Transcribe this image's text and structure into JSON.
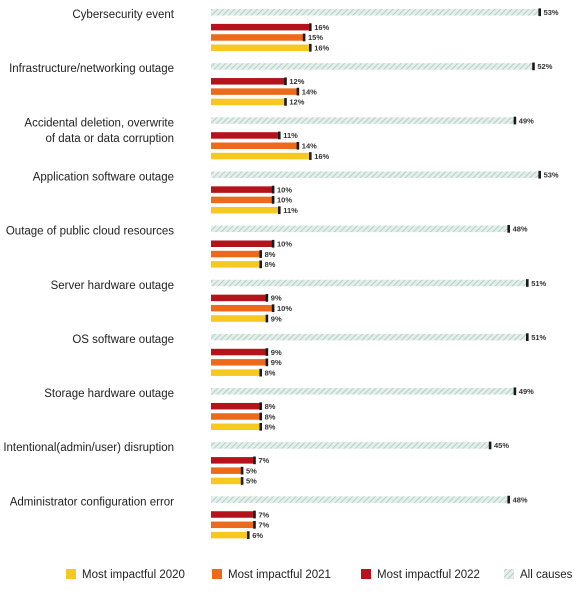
{
  "chart_data": {
    "type": "bar",
    "orientation": "horizontal",
    "categories": [
      [
        "Cybersecurity event"
      ],
      [
        "Infrastructure/networking outage"
      ],
      [
        "Accidental deletion, overwrite",
        "of data or data corruption"
      ],
      [
        "Application software outage"
      ],
      [
        "Outage of public cloud resources"
      ],
      [
        "Server hardware outage"
      ],
      [
        "OS software outage"
      ],
      [
        "Storage hardware outage"
      ],
      [
        "Intentional(admin/user) disruption"
      ],
      [
        "Administrator configuration error"
      ]
    ],
    "series": [
      {
        "name": "All causes",
        "color": "#cfe3dc",
        "pattern": "diagonal-hatch",
        "values": [
          53,
          52,
          49,
          53,
          48,
          51,
          51,
          49,
          45,
          48
        ]
      },
      {
        "name": "Most impactful 2022",
        "color": "#b5121b",
        "values": [
          16,
          12,
          11,
          10,
          10,
          9,
          9,
          8,
          7,
          7
        ]
      },
      {
        "name": "Most impactful 2021",
        "color": "#ec6a1c",
        "values": [
          15,
          14,
          14,
          10,
          8,
          10,
          9,
          8,
          5,
          7
        ]
      },
      {
        "name": "Most impactful 2020",
        "color": "#f6c820",
        "values": [
          16,
          12,
          16,
          11,
          8,
          9,
          8,
          8,
          5,
          6
        ]
      }
    ],
    "value_suffix": "%",
    "xlim": [
      0,
      55
    ],
    "legend": {
      "placement": "bottom",
      "order": [
        "Most impactful 2020",
        "Most impactful 2021",
        "Most impactful 2022",
        "All causes"
      ]
    }
  }
}
